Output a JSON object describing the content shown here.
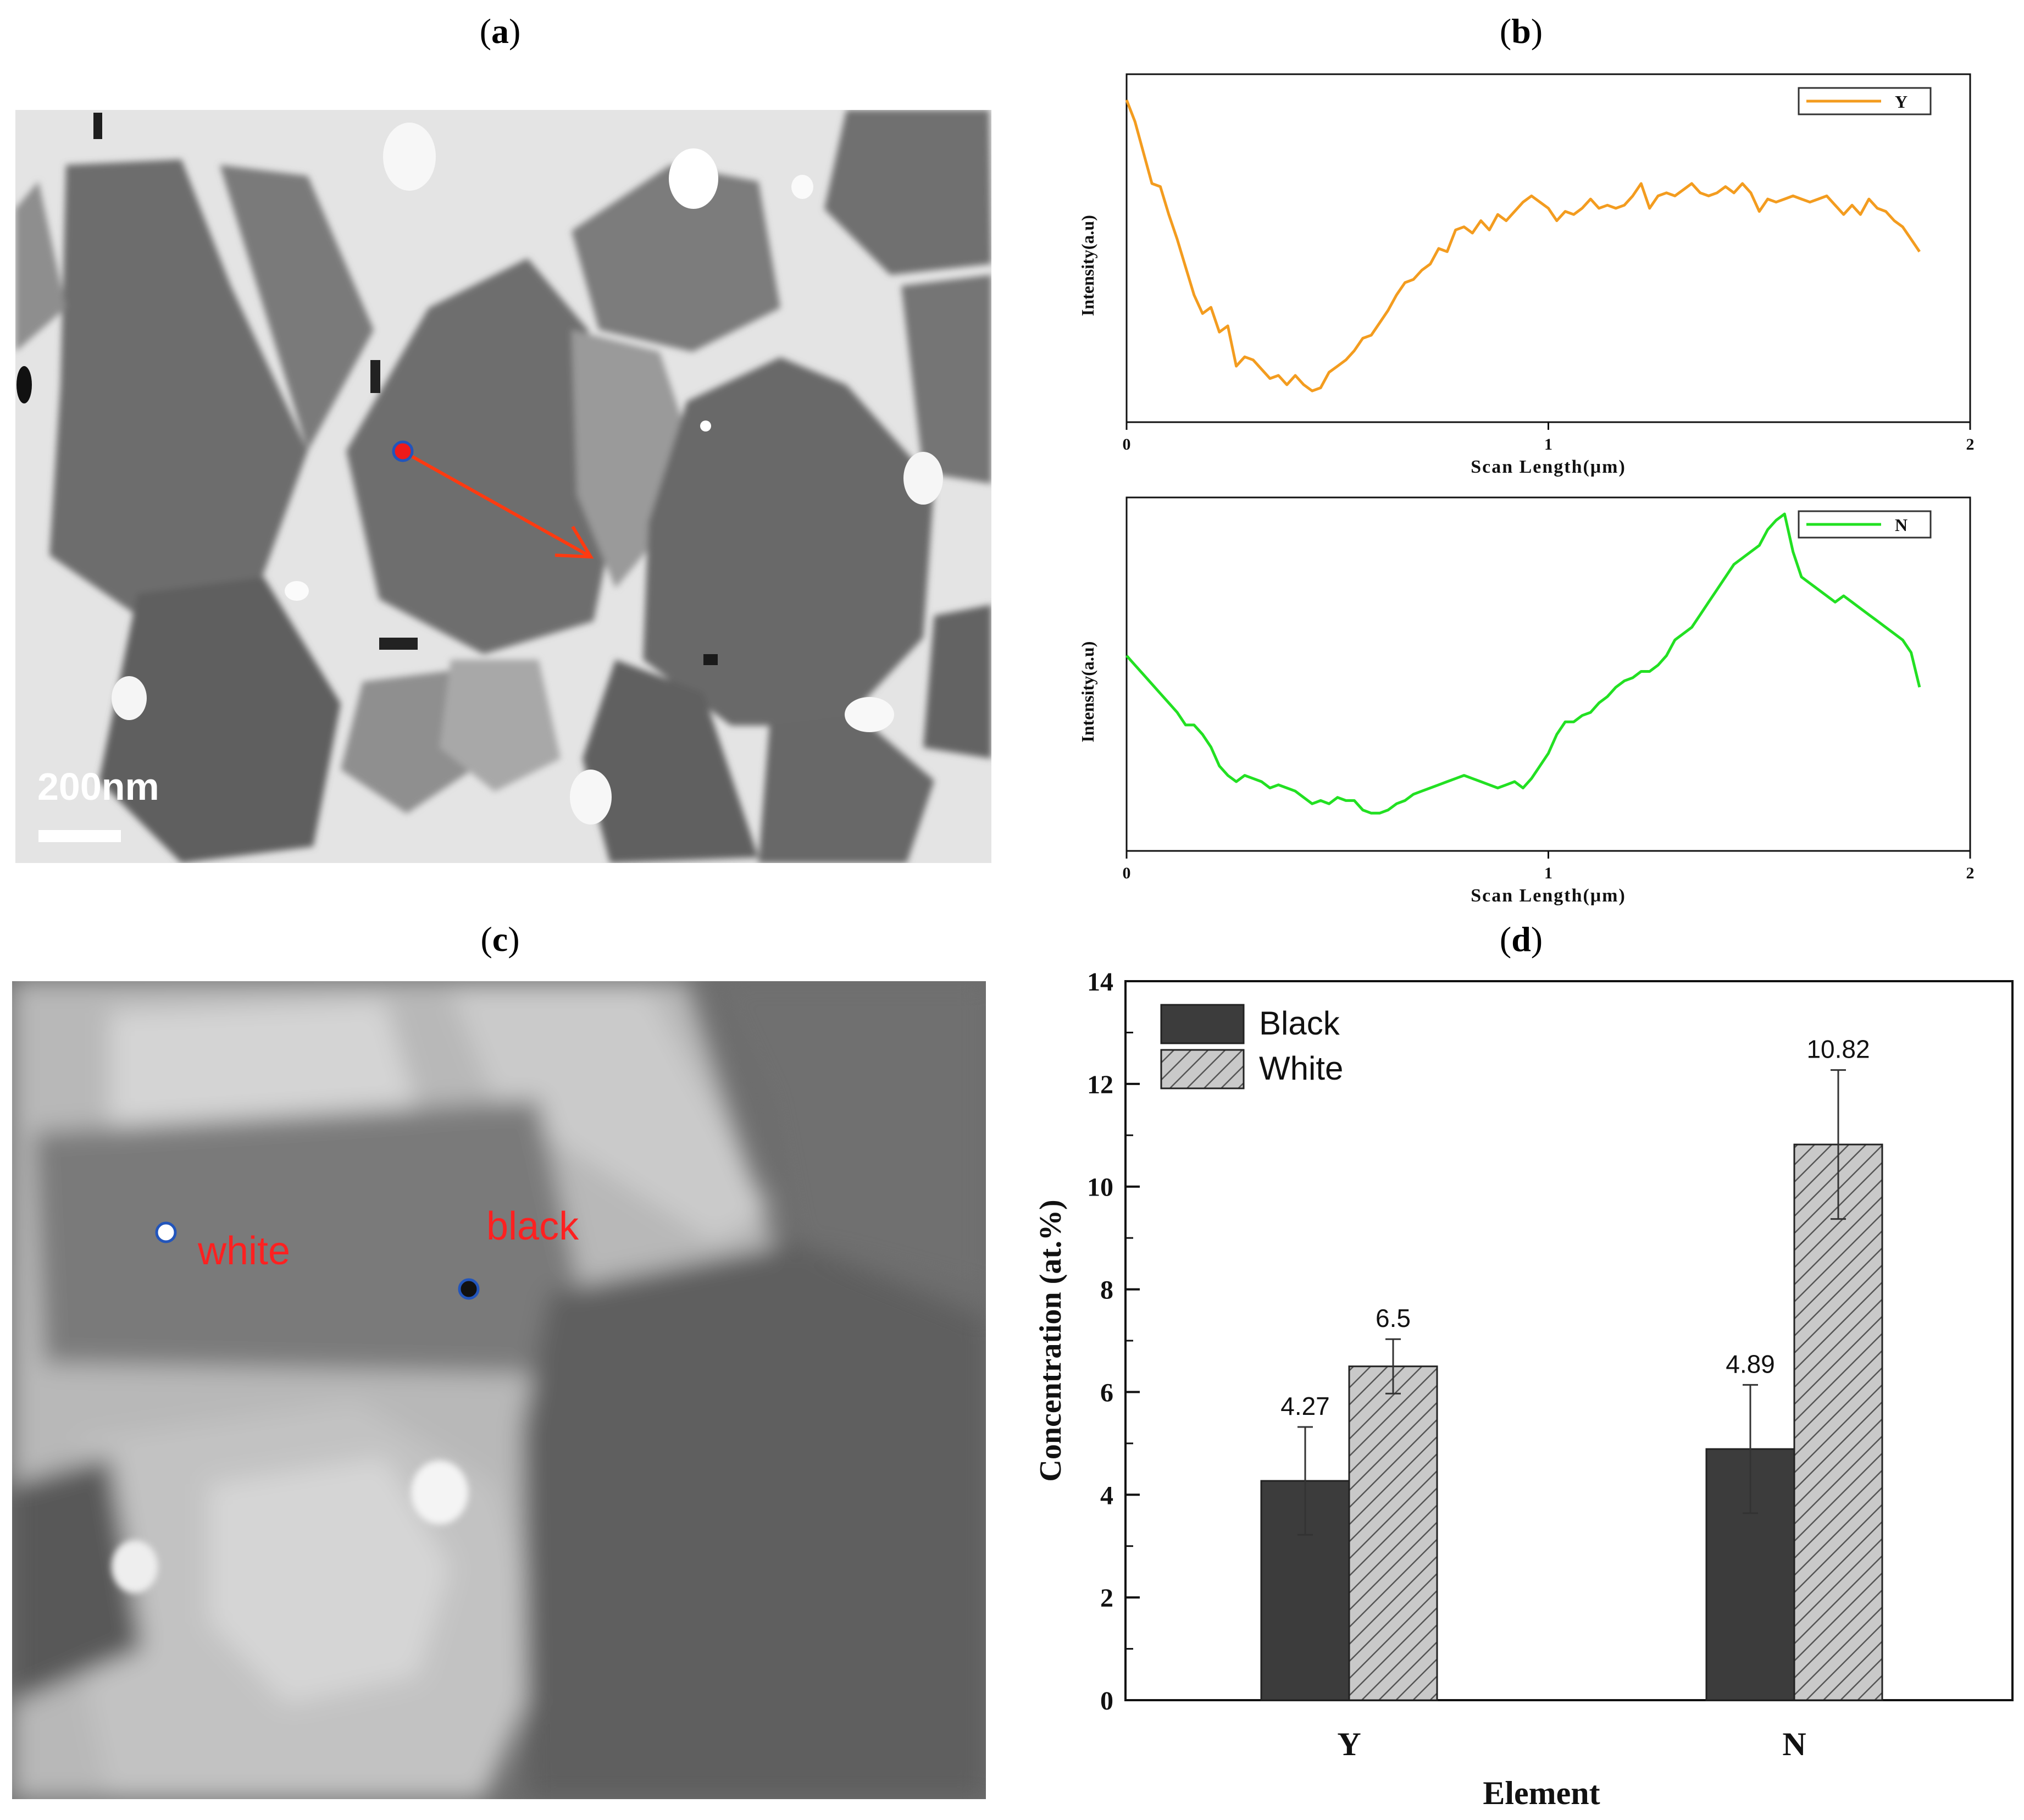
{
  "panels": {
    "a": {
      "label_open": "(",
      "letter": "a",
      "label_close": ")",
      "scale_bar": "200nm"
    },
    "b": {
      "label_open": "(",
      "letter": "b",
      "label_close": ")"
    },
    "c": {
      "label_open": "(",
      "letter": "c",
      "label_close": ")",
      "point_white": "white",
      "point_black": "black"
    },
    "d": {
      "label_open": "(",
      "letter": "d",
      "label_close": ")"
    }
  },
  "colors": {
    "Y_line": "#f39c1f",
    "N_line": "#22e022",
    "arrow": "#ff3a10",
    "black_bar": "#3c3c3c",
    "white_bar": "#c8c8c8",
    "annot_red": "#ff2020"
  },
  "chart_data": [
    {
      "type": "line",
      "panel": "b-top",
      "series": [
        {
          "name": "Y",
          "x": [
            0,
            0.02,
            0.04,
            0.06,
            0.08,
            0.1,
            0.12,
            0.14,
            0.16,
            0.18,
            0.2,
            0.22,
            0.24,
            0.26,
            0.28,
            0.3,
            0.32,
            0.34,
            0.36,
            0.38,
            0.4,
            0.42,
            0.44,
            0.46,
            0.48,
            0.5,
            0.52,
            0.54,
            0.56,
            0.58,
            0.6,
            0.62,
            0.64,
            0.66,
            0.68,
            0.7,
            0.72,
            0.74,
            0.76,
            0.78,
            0.8,
            0.82,
            0.84,
            0.86,
            0.88,
            0.9,
            0.92,
            0.94,
            0.96,
            0.98,
            1.0,
            1.02,
            1.04,
            1.06,
            1.08,
            1.1,
            1.12,
            1.14,
            1.16,
            1.18,
            1.2,
            1.22,
            1.24,
            1.26,
            1.28,
            1.3,
            1.32,
            1.34,
            1.36,
            1.38,
            1.4,
            1.42,
            1.44,
            1.46,
            1.48,
            1.5,
            1.52,
            1.54,
            1.56,
            1.58,
            1.6,
            1.62,
            1.64,
            1.66,
            1.68,
            1.7,
            1.72,
            1.74,
            1.76,
            1.78,
            1.8,
            1.82,
            1.84,
            1.86,
            1.88
          ],
          "values": [
            0.97,
            0.9,
            0.8,
            0.7,
            0.69,
            0.6,
            0.52,
            0.43,
            0.34,
            0.28,
            0.3,
            0.22,
            0.24,
            0.11,
            0.14,
            0.13,
            0.1,
            0.07,
            0.08,
            0.05,
            0.08,
            0.05,
            0.03,
            0.04,
            0.09,
            0.11,
            0.13,
            0.16,
            0.2,
            0.21,
            0.25,
            0.29,
            0.34,
            0.38,
            0.39,
            0.42,
            0.44,
            0.49,
            0.48,
            0.55,
            0.56,
            0.54,
            0.58,
            0.55,
            0.6,
            0.58,
            0.61,
            0.64,
            0.66,
            0.64,
            0.62,
            0.58,
            0.61,
            0.6,
            0.62,
            0.65,
            0.62,
            0.63,
            0.62,
            0.63,
            0.66,
            0.7,
            0.62,
            0.66,
            0.67,
            0.66,
            0.68,
            0.7,
            0.67,
            0.66,
            0.67,
            0.69,
            0.67,
            0.7,
            0.67,
            0.61,
            0.65,
            0.64,
            0.65,
            0.66,
            0.65,
            0.64,
            0.65,
            0.66,
            0.63,
            0.6,
            0.63,
            0.6,
            0.65,
            0.62,
            0.61,
            0.58,
            0.56,
            0.52,
            0.48
          ]
        }
      ],
      "xlabel": "Scan Length(μm)",
      "ylabel": "Intensity(a.u)",
      "xlim": [
        0,
        2
      ],
      "xticks": [
        "0",
        "1",
        "2"
      ],
      "legend": "top-right"
    },
    {
      "type": "line",
      "panel": "b-bottom",
      "series": [
        {
          "name": "N",
          "x": [
            0,
            0.02,
            0.04,
            0.06,
            0.08,
            0.1,
            0.12,
            0.14,
            0.16,
            0.18,
            0.2,
            0.22,
            0.24,
            0.26,
            0.28,
            0.3,
            0.32,
            0.34,
            0.36,
            0.38,
            0.4,
            0.42,
            0.44,
            0.46,
            0.48,
            0.5,
            0.52,
            0.54,
            0.56,
            0.58,
            0.6,
            0.62,
            0.64,
            0.66,
            0.68,
            0.7,
            0.72,
            0.74,
            0.76,
            0.78,
            0.8,
            0.82,
            0.84,
            0.86,
            0.88,
            0.9,
            0.92,
            0.94,
            0.96,
            0.98,
            1.0,
            1.02,
            1.04,
            1.06,
            1.08,
            1.1,
            1.12,
            1.14,
            1.16,
            1.18,
            1.2,
            1.22,
            1.24,
            1.26,
            1.28,
            1.3,
            1.32,
            1.34,
            1.36,
            1.38,
            1.4,
            1.42,
            1.44,
            1.46,
            1.48,
            1.5,
            1.52,
            1.54,
            1.56,
            1.58,
            1.6,
            1.62,
            1.64,
            1.66,
            1.68,
            1.7,
            1.72,
            1.74,
            1.76,
            1.78,
            1.8,
            1.82,
            1.84,
            1.86,
            1.88
          ],
          "values": [
            0.55,
            0.52,
            0.49,
            0.46,
            0.43,
            0.4,
            0.37,
            0.33,
            0.33,
            0.3,
            0.26,
            0.2,
            0.17,
            0.15,
            0.17,
            0.16,
            0.15,
            0.13,
            0.14,
            0.13,
            0.12,
            0.1,
            0.08,
            0.09,
            0.08,
            0.1,
            0.09,
            0.09,
            0.06,
            0.05,
            0.05,
            0.06,
            0.08,
            0.09,
            0.11,
            0.12,
            0.13,
            0.14,
            0.15,
            0.16,
            0.17,
            0.16,
            0.15,
            0.14,
            0.13,
            0.14,
            0.15,
            0.13,
            0.16,
            0.2,
            0.24,
            0.3,
            0.34,
            0.34,
            0.36,
            0.37,
            0.4,
            0.42,
            0.45,
            0.47,
            0.48,
            0.5,
            0.5,
            0.52,
            0.55,
            0.6,
            0.62,
            0.64,
            0.68,
            0.72,
            0.76,
            0.8,
            0.84,
            0.86,
            0.88,
            0.9,
            0.95,
            0.98,
            1.0,
            0.88,
            0.8,
            0.78,
            0.76,
            0.74,
            0.72,
            0.74,
            0.72,
            0.7,
            0.68,
            0.66,
            0.64,
            0.62,
            0.6,
            0.56,
            0.45
          ]
        }
      ],
      "xlabel": "Scan Length(μm)",
      "ylabel": "Intensity(a.u)",
      "xlim": [
        0,
        2
      ],
      "xticks": [
        "0",
        "1",
        "2"
      ],
      "legend": "top-right"
    },
    {
      "type": "bar",
      "panel": "d",
      "categories": [
        "Y",
        "N"
      ],
      "series": [
        {
          "name": "Black",
          "values": [
            4.27,
            4.89
          ],
          "errors": [
            1.05,
            1.25
          ],
          "labels": [
            "4.27",
            "4.89"
          ]
        },
        {
          "name": "White",
          "values": [
            6.5,
            10.82
          ],
          "errors": [
            0.53,
            1.45
          ],
          "labels": [
            "6.5",
            "10.82"
          ]
        }
      ],
      "xlabel": "Element",
      "ylabel": "Concentration (at.%)",
      "ylim": [
        0,
        14
      ],
      "yticks": [
        "0",
        "2",
        "4",
        "6",
        "8",
        "10",
        "12",
        "14"
      ],
      "legend": "top-left"
    }
  ]
}
